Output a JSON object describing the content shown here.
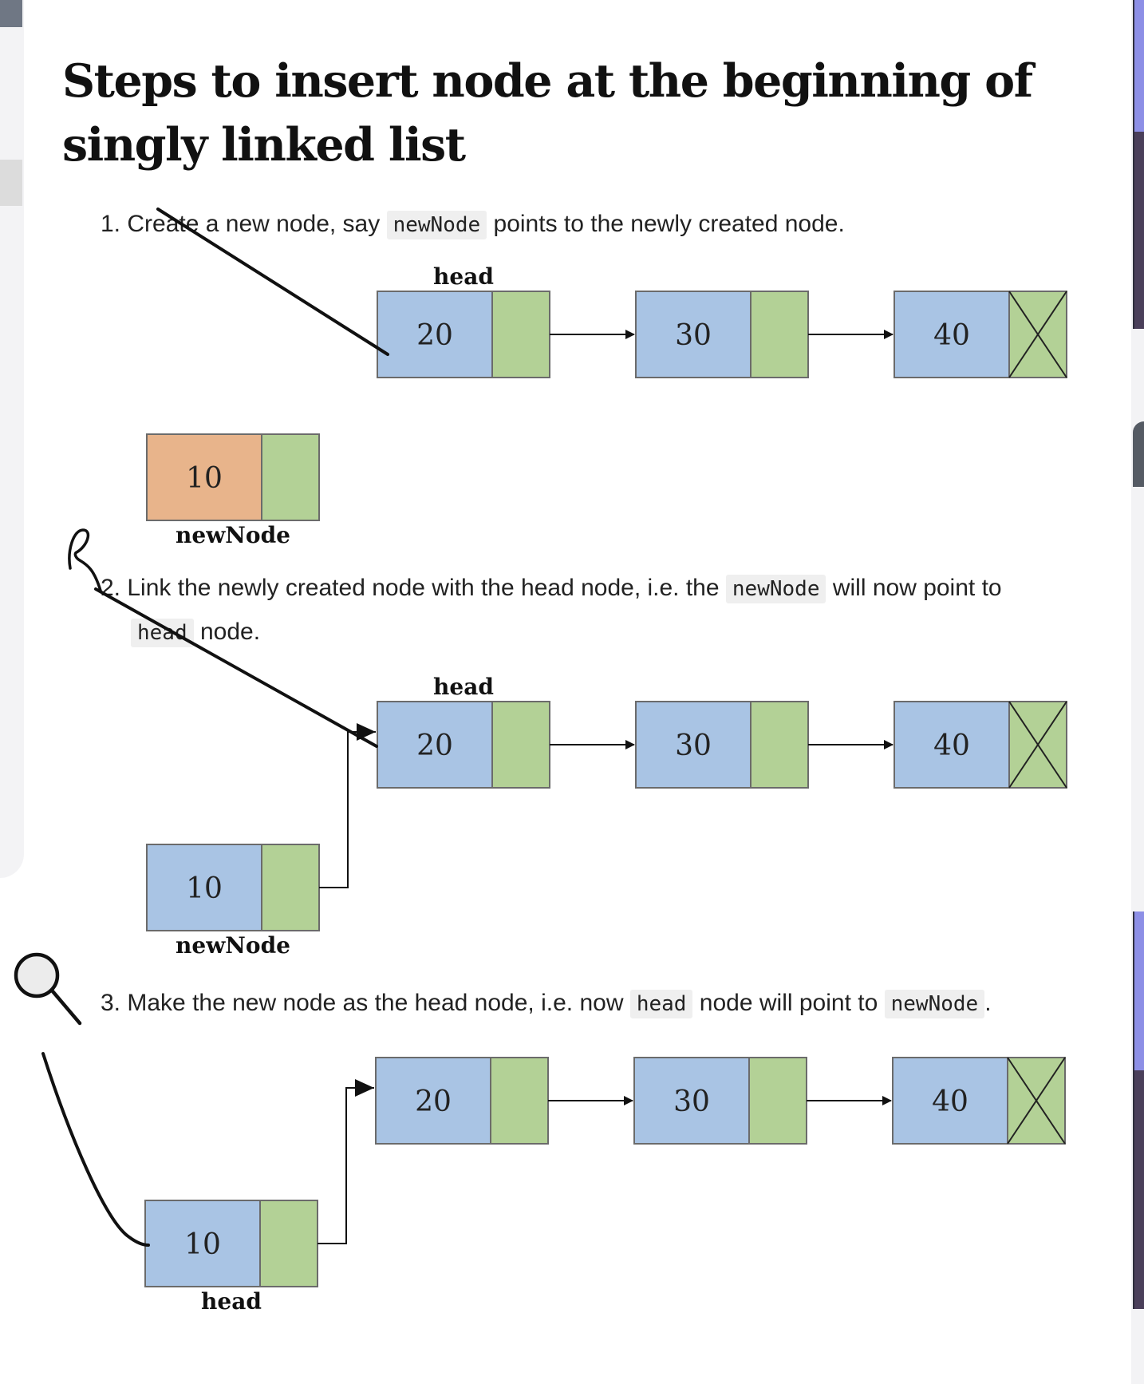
{
  "article": {
    "title": "Steps to insert node at the beginning of singly linked list"
  },
  "steps": [
    {
      "number": "1.",
      "text_before": "Create a new node, say",
      "code1": "newNode",
      "text_after": "points to the newly created node."
    },
    {
      "number": "2.",
      "text_before": "Link the newly created node with the head node, i.e. the",
      "code1": "newNode",
      "text_middle": "will now point to",
      "code2": "head",
      "text_after": "node."
    },
    {
      "number": "3.",
      "text_before": "Make the new node as the head node, i.e. now",
      "code1": "head",
      "text_middle": "node will point to",
      "code2": "newNode",
      "text_after": "."
    }
  ],
  "diagrams": [
    {
      "top_label": "head",
      "list_values": [
        "20",
        "30",
        "40"
      ],
      "new_value": "10",
      "new_label": "newNode",
      "new_color": "#e8b48b",
      "linked": false
    },
    {
      "top_label": "head",
      "list_values": [
        "20",
        "30",
        "40"
      ],
      "new_value": "10",
      "new_label": "newNode",
      "new_color": "#a9c4e4",
      "linked": true
    },
    {
      "top_label": "",
      "list_values": [
        "20",
        "30",
        "40"
      ],
      "new_value": "10",
      "new_label": "head",
      "new_color": "#a9c4e4",
      "linked": true
    }
  ],
  "colors": {
    "data_cell": "#a9c4e4",
    "pointer_cell": "#b3d196",
    "border": "#6b6b6b"
  }
}
